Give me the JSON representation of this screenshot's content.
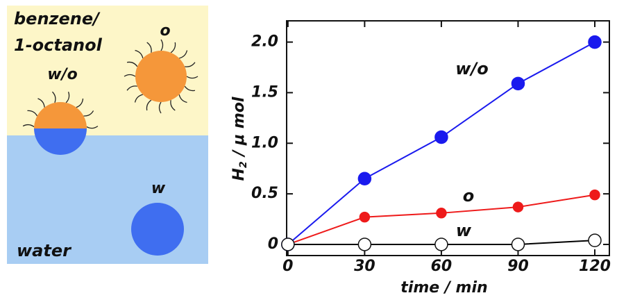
{
  "diagram": {
    "labels": [
      "benzene/",
      "1-octanol",
      "o",
      "w/o",
      "w",
      "water"
    ]
  },
  "chart_data": {
    "type": "line",
    "x": [
      0,
      30,
      60,
      90,
      120
    ],
    "xlim": [
      -0.5,
      125.7
    ],
    "xticks": [
      0,
      30,
      60,
      90,
      120
    ],
    "ylim": [
      -0.11,
      2.21
    ],
    "yticks": [
      0,
      0.5,
      {
        "value": 1,
        "label": "1.0"
      },
      1.5,
      {
        "value": 2,
        "label": "2.0"
      }
    ],
    "xlabel": "time / min",
    "ylabel": [
      "H",
      "2",
      " / μ mol"
    ],
    "series": [
      {
        "name": "w/o",
        "color": "#1a1aee",
        "values": [
          0,
          0.65,
          1.06,
          1.59,
          2.0
        ]
      },
      {
        "name": "o",
        "color": "#ee1a1a",
        "values": [
          0,
          0.27,
          0.31,
          0.37,
          0.49
        ]
      },
      {
        "name": "w",
        "color": "#000000",
        "values": [
          0,
          0,
          0,
          0,
          0.04
        ]
      }
    ]
  }
}
